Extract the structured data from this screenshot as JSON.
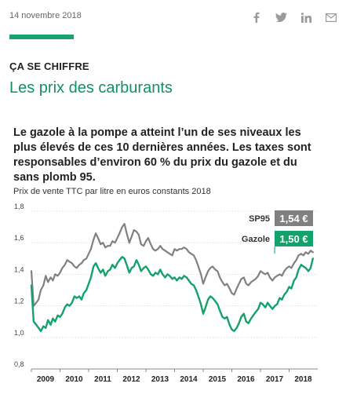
{
  "header": {
    "date": "14 novembre 2018"
  },
  "share": [
    {
      "name": "facebook-icon"
    },
    {
      "name": "twitter-icon"
    },
    {
      "name": "linkedin-icon"
    },
    {
      "name": "mail-icon"
    }
  ],
  "article": {
    "kicker": "ÇA SE CHIFFRE",
    "title": "Les prix des carburants",
    "lead": "Le gazole à la pompe a atteint l’un de ses niveaux les plus élevés de ces 10 dernières années. Les taxes sont responsables d’environ 60 % du prix du gazole et du sans plomb 95.",
    "subtitle": "Prix de vente TTC par litre en euros constants 2018"
  },
  "colors": {
    "accent": "#1aa36f",
    "title": "#11925f",
    "sp95": "#808080",
    "gazole": "#12a26b"
  },
  "chart_data": {
    "type": "line",
    "ylim": [
      0.8,
      1.8
    ],
    "yticks": [
      0.8,
      1.0,
      1.2,
      1.4,
      1.6,
      1.8
    ],
    "ytick_labels": [
      "0,8",
      "1,0",
      "1,2",
      "1,4",
      "1,6",
      "1,8"
    ],
    "xlim": [
      2009,
      2019
    ],
    "xticks": [
      2009,
      2010,
      2011,
      2012,
      2013,
      2014,
      2015,
      2016,
      2017,
      2018
    ],
    "xtick_labels": [
      "2009",
      "2010",
      "2011",
      "2012",
      "2013",
      "2014",
      "2015",
      "2016",
      "2017",
      "2018"
    ],
    "grid": true,
    "legend": "top-right",
    "series": [
      {
        "name": "SP95",
        "value_label": "1,54 €",
        "color": "#808080",
        "x": [
          2009.0,
          2009.08,
          2009.17,
          2009.25,
          2009.33,
          2009.42,
          2009.5,
          2009.58,
          2009.67,
          2009.75,
          2009.83,
          2009.92,
          2010.0,
          2010.08,
          2010.17,
          2010.25,
          2010.33,
          2010.42,
          2010.5,
          2010.58,
          2010.67,
          2010.75,
          2010.83,
          2010.92,
          2011.0,
          2011.08,
          2011.17,
          2011.25,
          2011.33,
          2011.42,
          2011.5,
          2011.58,
          2011.67,
          2011.75,
          2011.83,
          2011.92,
          2012.0,
          2012.08,
          2012.17,
          2012.25,
          2012.33,
          2012.42,
          2012.5,
          2012.58,
          2012.67,
          2012.75,
          2012.83,
          2012.92,
          2013.0,
          2013.08,
          2013.17,
          2013.25,
          2013.33,
          2013.42,
          2013.5,
          2013.58,
          2013.67,
          2013.75,
          2013.83,
          2013.92,
          2014.0,
          2014.08,
          2014.17,
          2014.25,
          2014.33,
          2014.42,
          2014.5,
          2014.58,
          2014.67,
          2014.75,
          2014.83,
          2014.92,
          2015.0,
          2015.08,
          2015.17,
          2015.25,
          2015.33,
          2015.42,
          2015.5,
          2015.58,
          2015.67,
          2015.75,
          2015.83,
          2015.92,
          2016.0,
          2016.08,
          2016.17,
          2016.25,
          2016.33,
          2016.42,
          2016.5,
          2016.58,
          2016.67,
          2016.75,
          2016.83,
          2016.92,
          2017.0,
          2017.08,
          2017.17,
          2017.25,
          2017.33,
          2017.42,
          2017.5,
          2017.58,
          2017.67,
          2017.75,
          2017.83,
          2017.92,
          2018.0,
          2018.08,
          2018.17,
          2018.25,
          2018.33,
          2018.42,
          2018.5,
          2018.58,
          2018.67,
          2018.75,
          2018.83
        ],
        "values": [
          1.42,
          1.2,
          1.22,
          1.24,
          1.3,
          1.33,
          1.39,
          1.35,
          1.38,
          1.36,
          1.4,
          1.39,
          1.41,
          1.44,
          1.46,
          1.49,
          1.48,
          1.47,
          1.45,
          1.44,
          1.46,
          1.47,
          1.49,
          1.5,
          1.53,
          1.56,
          1.62,
          1.66,
          1.63,
          1.59,
          1.6,
          1.57,
          1.58,
          1.58,
          1.61,
          1.6,
          1.63,
          1.66,
          1.7,
          1.72,
          1.66,
          1.6,
          1.64,
          1.68,
          1.67,
          1.65,
          1.59,
          1.58,
          1.61,
          1.63,
          1.59,
          1.56,
          1.55,
          1.56,
          1.58,
          1.56,
          1.55,
          1.54,
          1.53,
          1.52,
          1.56,
          1.55,
          1.56,
          1.56,
          1.57,
          1.56,
          1.54,
          1.53,
          1.52,
          1.49,
          1.45,
          1.4,
          1.34,
          1.38,
          1.42,
          1.44,
          1.45,
          1.43,
          1.42,
          1.38,
          1.35,
          1.33,
          1.34,
          1.31,
          1.28,
          1.27,
          1.31,
          1.34,
          1.37,
          1.38,
          1.34,
          1.33,
          1.35,
          1.36,
          1.37,
          1.39,
          1.42,
          1.41,
          1.4,
          1.41,
          1.38,
          1.36,
          1.38,
          1.39,
          1.4,
          1.39,
          1.42,
          1.44,
          1.45,
          1.44,
          1.47,
          1.49,
          1.52,
          1.53,
          1.52,
          1.54,
          1.53,
          1.55,
          1.54
        ]
      },
      {
        "name": "Gazole",
        "value_label": "1,50 €",
        "color": "#12a26b",
        "x": [
          2009.0,
          2009.08,
          2009.17,
          2009.25,
          2009.33,
          2009.42,
          2009.5,
          2009.58,
          2009.67,
          2009.75,
          2009.83,
          2009.92,
          2010.0,
          2010.08,
          2010.17,
          2010.25,
          2010.33,
          2010.42,
          2010.5,
          2010.58,
          2010.67,
          2010.75,
          2010.83,
          2010.92,
          2011.0,
          2011.08,
          2011.17,
          2011.25,
          2011.33,
          2011.42,
          2011.5,
          2011.58,
          2011.67,
          2011.75,
          2011.83,
          2011.92,
          2012.0,
          2012.08,
          2012.17,
          2012.25,
          2012.33,
          2012.42,
          2012.5,
          2012.58,
          2012.67,
          2012.75,
          2012.83,
          2012.92,
          2013.0,
          2013.08,
          2013.17,
          2013.25,
          2013.33,
          2013.42,
          2013.5,
          2013.58,
          2013.67,
          2013.75,
          2013.83,
          2013.92,
          2014.0,
          2014.08,
          2014.17,
          2014.25,
          2014.33,
          2014.42,
          2014.5,
          2014.58,
          2014.67,
          2014.75,
          2014.83,
          2014.92,
          2015.0,
          2015.08,
          2015.17,
          2015.25,
          2015.33,
          2015.42,
          2015.5,
          2015.58,
          2015.67,
          2015.75,
          2015.83,
          2015.92,
          2016.0,
          2016.08,
          2016.17,
          2016.25,
          2016.33,
          2016.42,
          2016.5,
          2016.58,
          2016.67,
          2016.75,
          2016.83,
          2016.92,
          2017.0,
          2017.08,
          2017.17,
          2017.25,
          2017.33,
          2017.42,
          2017.5,
          2017.58,
          2017.67,
          2017.75,
          2017.83,
          2017.92,
          2018.0,
          2018.08,
          2018.17,
          2018.25,
          2018.33,
          2018.42,
          2018.5,
          2018.58,
          2018.67,
          2018.75,
          2018.83
        ],
        "values": [
          1.33,
          1.1,
          1.08,
          1.06,
          1.04,
          1.07,
          1.06,
          1.11,
          1.08,
          1.12,
          1.1,
          1.14,
          1.13,
          1.15,
          1.19,
          1.21,
          1.2,
          1.22,
          1.26,
          1.25,
          1.26,
          1.24,
          1.28,
          1.3,
          1.34,
          1.38,
          1.45,
          1.47,
          1.44,
          1.41,
          1.43,
          1.39,
          1.42,
          1.43,
          1.46,
          1.44,
          1.47,
          1.49,
          1.51,
          1.5,
          1.46,
          1.41,
          1.44,
          1.45,
          1.49,
          1.46,
          1.42,
          1.44,
          1.45,
          1.43,
          1.4,
          1.39,
          1.41,
          1.4,
          1.43,
          1.4,
          1.38,
          1.4,
          1.39,
          1.37,
          1.38,
          1.36,
          1.38,
          1.37,
          1.39,
          1.38,
          1.36,
          1.34,
          1.33,
          1.3,
          1.26,
          1.21,
          1.15,
          1.19,
          1.24,
          1.26,
          1.25,
          1.23,
          1.21,
          1.17,
          1.13,
          1.12,
          1.13,
          1.08,
          1.05,
          1.04,
          1.06,
          1.09,
          1.13,
          1.15,
          1.1,
          1.09,
          1.12,
          1.14,
          1.16,
          1.18,
          1.22,
          1.21,
          1.19,
          1.22,
          1.2,
          1.18,
          1.2,
          1.21,
          1.25,
          1.24,
          1.27,
          1.29,
          1.32,
          1.31,
          1.36,
          1.38,
          1.43,
          1.46,
          1.45,
          1.44,
          1.42,
          1.44,
          1.5
        ]
      }
    ]
  }
}
